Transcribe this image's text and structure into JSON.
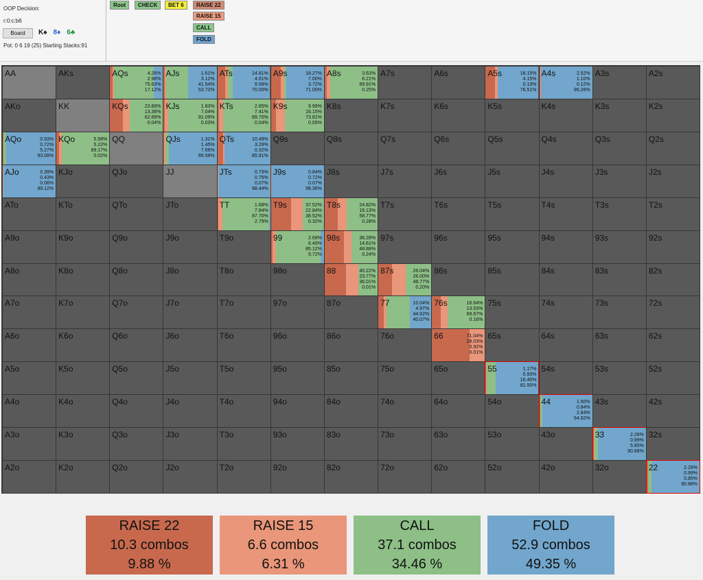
{
  "info": {
    "title": "OOP Decision:",
    "path": "r:0:c:b6",
    "board_button": "Board",
    "board_cards": [
      {
        "rank": "K",
        "suit": "♠",
        "color": "#111111"
      },
      {
        "rank": "8",
        "suit": "♦",
        "color": "#2a62c9"
      },
      {
        "rank": "6",
        "suit": "♣",
        "color": "#1e8f3a"
      }
    ],
    "pot_line": "Pot: 0 6 19 (25) Starting Stacks:91"
  },
  "actions": [
    {
      "label": "Root",
      "color": "#8cc68c"
    },
    {
      "label": "CHECK",
      "color": "#8cc68c"
    },
    {
      "label": "BET 6",
      "color": "#f5ee3a"
    },
    {
      "label": "RAISE 22",
      "color": "#d08a74"
    },
    {
      "label": "RAISE 15",
      "color": "#ec9c80"
    },
    {
      "label": "CALL",
      "color": "#8cc68c"
    },
    {
      "label": "FOLD",
      "color": "#6fa3d0"
    }
  ],
  "colors": {
    "raise22": "#c8694e",
    "raise15": "#e9967a",
    "call": "#8dbf87",
    "fold": "#72a6cc",
    "grey": "#8a8a8a"
  },
  "ranks": [
    "A",
    "K",
    "Q",
    "J",
    "T",
    "9",
    "8",
    "7",
    "6",
    "5",
    "4",
    "3",
    "2"
  ],
  "cells": [
    {
      "hand": "AQs",
      "stats": [
        "4.26%",
        "2.98%",
        "75.63%",
        "17.12%"
      ]
    },
    {
      "hand": "AJs",
      "stats": [
        "1.61%",
        "3.12%",
        "41.54%",
        "53.72%"
      ]
    },
    {
      "hand": "ATs",
      "stats": [
        "14.81%",
        "4.61%",
        "9.58%",
        "70.00%"
      ]
    },
    {
      "hand": "A9s",
      "stats": [
        "18.27%",
        "7.00%",
        "3.72%",
        "71.00%"
      ]
    },
    {
      "hand": "A8s",
      "stats": [
        "3.63%",
        "6.21%",
        "89.91%",
        "0.25%"
      ]
    },
    {
      "hand": "A5s",
      "stats": [
        "18.15%",
        "4.15%",
        "0.19%",
        "76.51%"
      ]
    },
    {
      "hand": "A4s",
      "stats": [
        "2.52%",
        "1.10%",
        "0.12%",
        "96.26%"
      ]
    },
    {
      "hand": "KQs",
      "stats": [
        "23.89%",
        "13.38%",
        "62.69%",
        "0.04%"
      ]
    },
    {
      "hand": "KJs",
      "stats": [
        "1.83%",
        "7.04%",
        "91.09%",
        "0.03%"
      ]
    },
    {
      "hand": "KTs",
      "stats": [
        "2.85%",
        "7.41%",
        "89.70%",
        "0.04%"
      ]
    },
    {
      "hand": "K9s",
      "stats": [
        "9.99%",
        "16.15%",
        "73.81%",
        "0.05%"
      ]
    },
    {
      "hand": "AQo",
      "stats": [
        "0.93%",
        "0.72%",
        "5.27%",
        "93.08%"
      ]
    },
    {
      "hand": "KQo",
      "stats": [
        "5.58%",
        "5.22%",
        "89.17%",
        "0.02%"
      ]
    },
    {
      "hand": "QJs",
      "stats": [
        "1.31%",
        "1.45%",
        "7.66%",
        "89.58%"
      ]
    },
    {
      "hand": "QTs",
      "stats": [
        "10.49%",
        "3.29%",
        "0.32%",
        "85.91%"
      ]
    },
    {
      "hand": "AJo",
      "stats": [
        "0.39%",
        "0.43%",
        "0.06%",
        "99.12%"
      ]
    },
    {
      "hand": "JTs",
      "stats": [
        "0.73%",
        "0.75%",
        "0.07%",
        "98.44%"
      ]
    },
    {
      "hand": "J9s",
      "stats": [
        "0.84%",
        "0.72%",
        "0.07%",
        "98.36%"
      ]
    },
    {
      "hand": "TT",
      "stats": [
        "1.68%",
        "7.84%",
        "87.70%",
        "2.79%"
      ]
    },
    {
      "hand": "T9s",
      "stats": [
        "37.52%",
        "22.84%",
        "38.52%",
        "0.32%"
      ]
    },
    {
      "hand": "T8s",
      "stats": [
        "24.82%",
        "16.13%",
        "58.77%",
        "0.28%"
      ]
    },
    {
      "hand": "99",
      "stats": [
        "2.68%",
        "6.49%",
        "85.12%",
        "5.72%"
      ]
    },
    {
      "hand": "98s",
      "stats": [
        "36.28%",
        "14.61%",
        "48.88%",
        "0.24%"
      ]
    },
    {
      "hand": "88",
      "stats": [
        "40.22%",
        "23.77%",
        "36.01%",
        "0.01%"
      ]
    },
    {
      "hand": "87s",
      "stats": [
        "26.04%",
        "26.00%",
        "48.77%",
        "0.20%"
      ]
    },
    {
      "hand": "77",
      "stats": [
        "10.04%",
        "4.97%",
        "44.92%",
        "40.07%"
      ]
    },
    {
      "hand": "76s",
      "stats": [
        "16.64%",
        "13.53%",
        "69.67%",
        "0.16%"
      ]
    },
    {
      "hand": "66",
      "stats": [
        "71.04%",
        "28.03%",
        "0.92%",
        "0.01%"
      ]
    },
    {
      "hand": "55",
      "stats": [
        "1.17%",
        "0.93%",
        "16.40%",
        "81.50%"
      ],
      "highlight": true
    },
    {
      "hand": "44",
      "stats": [
        "1.50%",
        "0.84%",
        "2.84%",
        "94.82%"
      ],
      "highlight": true
    },
    {
      "hand": "33",
      "stats": [
        "2.28%",
        "0.99%",
        "5.85%",
        "90.88%"
      ],
      "highlight": true
    },
    {
      "hand": "22",
      "stats": [
        "2.28%",
        "0.99%",
        "5.85%",
        "90.88%"
      ],
      "highlight": true
    }
  ],
  "summary": [
    {
      "name": "RAISE 22",
      "combos": "10.3 combos",
      "pct": "9.88 %",
      "color": "#c8694e"
    },
    {
      "name": "RAISE 15",
      "combos": "6.6 combos",
      "pct": "6.31 %",
      "color": "#e9967a"
    },
    {
      "name": "CALL",
      "combos": "37.1 combos",
      "pct": "34.46 %",
      "color": "#8dbf87"
    },
    {
      "name": "FOLD",
      "combos": "52.9 combos",
      "pct": "49.35 %",
      "color": "#72a6cc"
    }
  ]
}
